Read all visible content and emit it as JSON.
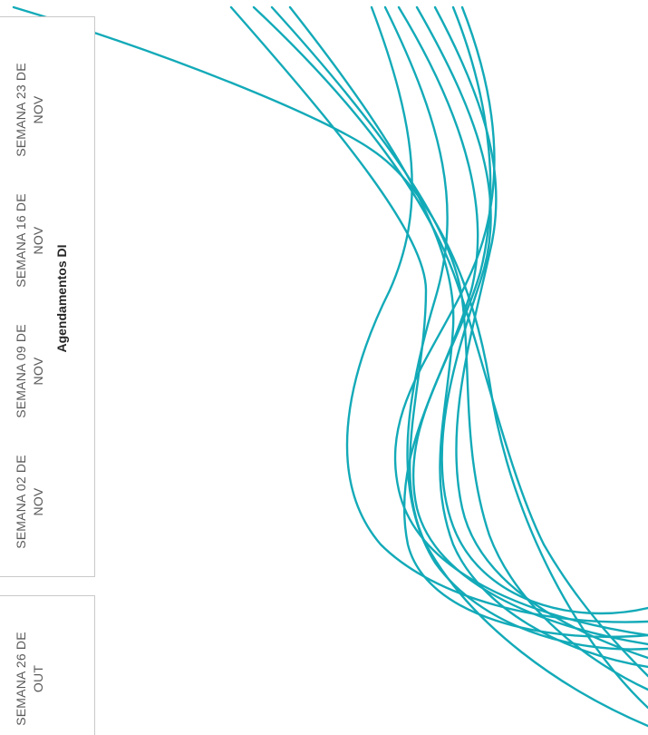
{
  "chart_title": "Agendamentos DI",
  "weeks": [
    {
      "line1": "SEMANA 23 DE",
      "line2": "NOV"
    },
    {
      "line1": "SEMANA 16 DE",
      "line2": "NOV"
    },
    {
      "line1": "SEMANA 09 DE",
      "line2": "NOV"
    },
    {
      "line1": "SEMANA 02 DE",
      "line2": "NOV"
    }
  ],
  "previous_week": {
    "line1": "SEMANA 26 DE",
    "line2": "OUT"
  },
  "colors": {
    "accent": "#13aab8",
    "border": "#c9c9c9",
    "label": "#5a5a5a",
    "title": "#262626"
  }
}
